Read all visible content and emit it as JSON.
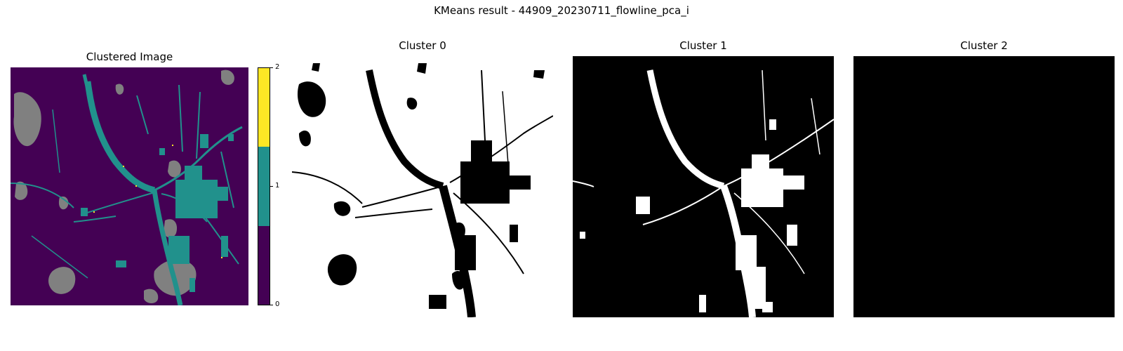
{
  "chart_data": {
    "type": "heatmap",
    "title": "KMeans result - 44909_20230711_flowline_pca_i",
    "panels": [
      {
        "title": "Clustered Image",
        "kind": "clustered",
        "colormap": {
          "0": "#440154",
          "1": "#21918c",
          "2": "#fde725"
        },
        "nodata_color": "#808080",
        "axis": "off"
      },
      {
        "title": "Cluster 0",
        "kind": "binary_mask",
        "dominant": "white",
        "axis": "off"
      },
      {
        "title": "Cluster 1",
        "kind": "binary_mask",
        "dominant": "black",
        "axis": "off"
      },
      {
        "title": "Cluster 2",
        "kind": "binary_mask",
        "dominant": "black",
        "empty": true,
        "axis": "off"
      }
    ],
    "colorbar": {
      "ticks": [
        "0",
        "1",
        "2"
      ],
      "range": [
        0,
        2
      ],
      "colors": [
        "#440154",
        "#21918c",
        "#fde725"
      ]
    }
  }
}
